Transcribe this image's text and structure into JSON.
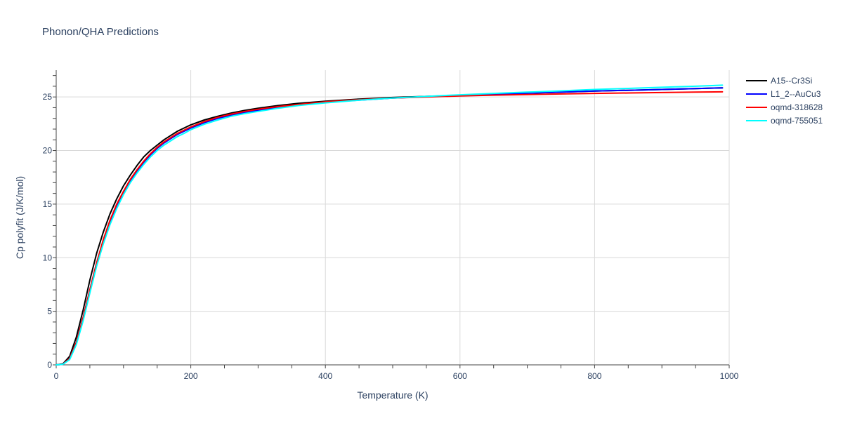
{
  "chart_data": {
    "type": "line",
    "title": "Phonon/QHA Predictions",
    "xlabel": "Temperature (K)",
    "ylabel": "Cp polyfit (J/K/mol)",
    "xlim": [
      0,
      1000
    ],
    "ylim": [
      0,
      27.5
    ],
    "x_ticks": [
      0,
      200,
      400,
      600,
      800,
      1000
    ],
    "y_ticks": [
      0,
      5,
      10,
      15,
      20,
      25
    ],
    "grid": true,
    "legend_position": "top-right",
    "series": [
      {
        "name": "A15--Cr3Si",
        "color": "#000000",
        "x": [
          0,
          10,
          20,
          30,
          40,
          50,
          60,
          70,
          80,
          90,
          100,
          110,
          120,
          130,
          140,
          150,
          160,
          170,
          180,
          190,
          200,
          220,
          240,
          260,
          280,
          300,
          330,
          360,
          400,
          450,
          500,
          550,
          600,
          650,
          700,
          750,
          800,
          850,
          900,
          950,
          990
        ],
        "y": [
          0,
          0.1,
          0.8,
          2.6,
          5.1,
          7.9,
          10.4,
          12.4,
          14.1,
          15.5,
          16.7,
          17.7,
          18.6,
          19.4,
          20.0,
          20.5,
          21.0,
          21.4,
          21.8,
          22.1,
          22.4,
          22.85,
          23.2,
          23.5,
          23.75,
          23.95,
          24.2,
          24.4,
          24.6,
          24.8,
          24.95,
          25.05,
          25.15,
          25.25,
          25.35,
          25.45,
          25.55,
          25.62,
          25.7,
          25.78,
          25.85
        ]
      },
      {
        "name": "L1_2--AuCu3",
        "color": "#0000ff",
        "x": [
          0,
          10,
          20,
          30,
          40,
          50,
          60,
          70,
          80,
          90,
          100,
          110,
          120,
          130,
          140,
          150,
          160,
          170,
          180,
          190,
          200,
          220,
          240,
          260,
          280,
          300,
          330,
          360,
          400,
          450,
          500,
          550,
          600,
          650,
          700,
          750,
          800,
          850,
          900,
          950,
          990
        ],
        "y": [
          0,
          0.05,
          0.6,
          2.1,
          4.4,
          7.0,
          9.5,
          11.6,
          13.4,
          14.9,
          16.1,
          17.2,
          18.1,
          18.9,
          19.6,
          20.2,
          20.7,
          21.1,
          21.5,
          21.8,
          22.1,
          22.6,
          23.0,
          23.3,
          23.55,
          23.75,
          24.05,
          24.25,
          24.5,
          24.7,
          24.9,
          25.02,
          25.15,
          25.25,
          25.35,
          25.45,
          25.55,
          25.62,
          25.7,
          25.78,
          25.85
        ]
      },
      {
        "name": "oqmd-318628",
        "color": "#ff0000",
        "x": [
          0,
          10,
          20,
          30,
          40,
          50,
          60,
          70,
          80,
          90,
          100,
          110,
          120,
          130,
          140,
          150,
          160,
          170,
          180,
          190,
          200,
          220,
          240,
          260,
          280,
          300,
          330,
          360,
          400,
          450,
          500,
          550,
          600,
          650,
          700,
          750,
          800,
          850,
          900,
          950,
          990
        ],
        "y": [
          0,
          0.05,
          0.6,
          2.1,
          4.4,
          7.0,
          9.5,
          11.7,
          13.5,
          15.0,
          16.2,
          17.3,
          18.2,
          19.0,
          19.7,
          20.3,
          20.8,
          21.2,
          21.6,
          21.9,
          22.2,
          22.7,
          23.1,
          23.4,
          23.65,
          23.85,
          24.1,
          24.3,
          24.55,
          24.75,
          24.9,
          25.0,
          25.1,
          25.17,
          25.23,
          25.28,
          25.33,
          25.37,
          25.41,
          25.45,
          25.48
        ]
      },
      {
        "name": "oqmd-755051",
        "color": "#00ffff",
        "x": [
          0,
          10,
          20,
          30,
          40,
          50,
          60,
          70,
          80,
          90,
          100,
          110,
          120,
          130,
          140,
          150,
          160,
          170,
          180,
          190,
          200,
          220,
          240,
          260,
          280,
          300,
          330,
          360,
          400,
          450,
          500,
          550,
          600,
          650,
          700,
          750,
          800,
          850,
          900,
          950,
          990
        ],
        "y": [
          0,
          0.05,
          0.5,
          1.9,
          4.1,
          6.7,
          9.2,
          11.3,
          13.1,
          14.6,
          15.9,
          17.0,
          17.9,
          18.7,
          19.4,
          20.0,
          20.5,
          20.9,
          21.3,
          21.6,
          21.95,
          22.45,
          22.85,
          23.2,
          23.45,
          23.65,
          23.95,
          24.2,
          24.45,
          24.7,
          24.9,
          25.05,
          25.2,
          25.33,
          25.45,
          25.57,
          25.7,
          25.8,
          25.9,
          26.0,
          26.1
        ]
      }
    ]
  }
}
